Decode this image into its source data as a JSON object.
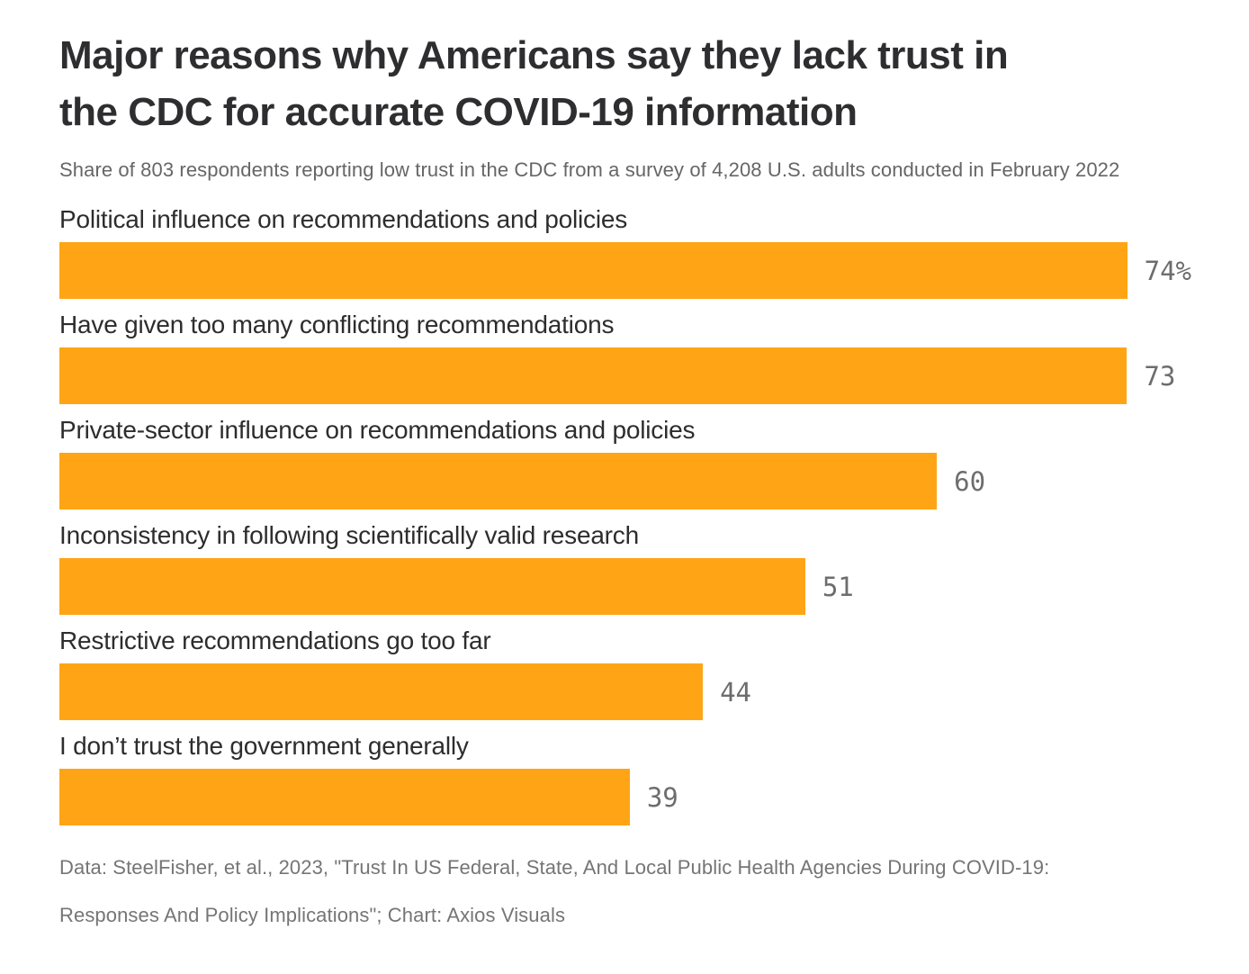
{
  "header": {
    "title_lines": [
      "Major reasons why Americans say they lack trust in",
      "the CDC for accurate COVID-19 information"
    ],
    "subtitle": "Share of 803 respondents reporting low trust in the CDC from a survey of 4,208 U.S. adults conducted in February 2022"
  },
  "chart_data": {
    "type": "bar",
    "orientation": "horizontal",
    "title": "Major reasons why Americans say they lack trust in the CDC for accurate COVID-19 information",
    "subtitle": "Share of 803 respondents reporting low trust in the CDC from a survey of 4,208 U.S. adults conducted in February 2022",
    "categories": [
      "Political influence on recommendations and policies",
      "Have given too many conflicting recommendations",
      "Private-sector influence on recommendations and policies",
      "Inconsistency in following scientifically valid research",
      "Restrictive recommendations go too far",
      "I don’t trust the government generally"
    ],
    "values": [
      74,
      73,
      60,
      51,
      44,
      39
    ],
    "value_labels": [
      "74%",
      "73",
      "60",
      "51",
      "44",
      "39"
    ],
    "unit": "percent",
    "xlim": [
      0,
      77
    ],
    "grid": false,
    "legend": false,
    "axis_ticks": "none",
    "bar_color": "#FFA515",
    "value_label_color": "#6d6d6d"
  },
  "footer": {
    "lines": [
      "Data: SteelFisher, et al., 2023, \"Trust In US Federal, State, And Local Public Health Agencies During COVID-19:",
      "Responses And Policy Implications\"; Chart: Axios Visuals"
    ]
  }
}
